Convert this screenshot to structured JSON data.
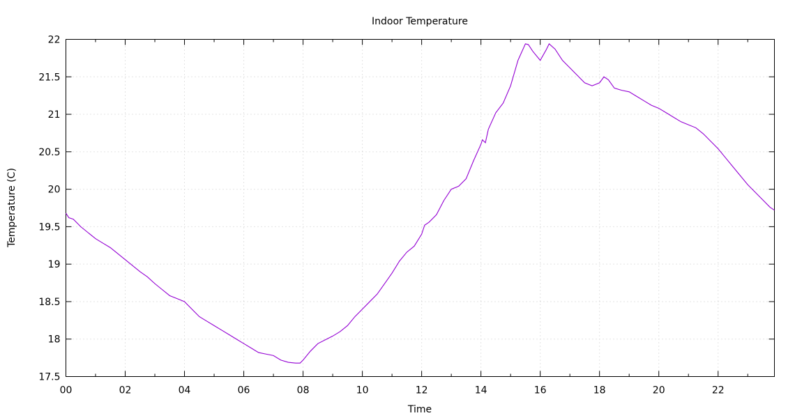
{
  "chart_data": {
    "type": "line",
    "title": "Indoor Temperature",
    "xlabel": "Time",
    "ylabel": "Temperature (C)",
    "xlim": [
      0,
      23.9
    ],
    "ylim": [
      17.5,
      22
    ],
    "grid": true,
    "color": "#9400d3",
    "x_ticks": [
      {
        "value": 0,
        "label": "00"
      },
      {
        "value": 2,
        "label": "02"
      },
      {
        "value": 4,
        "label": "04"
      },
      {
        "value": 6,
        "label": "06"
      },
      {
        "value": 8,
        "label": "08"
      },
      {
        "value": 10,
        "label": "10"
      },
      {
        "value": 12,
        "label": "12"
      },
      {
        "value": 14,
        "label": "14"
      },
      {
        "value": 16,
        "label": "16"
      },
      {
        "value": 18,
        "label": "18"
      },
      {
        "value": 20,
        "label": "20"
      },
      {
        "value": 22,
        "label": "22"
      }
    ],
    "x_minor_ticks": [
      1,
      3,
      5,
      7,
      9,
      11,
      13,
      15,
      17,
      19,
      21,
      23
    ],
    "y_ticks": [
      {
        "value": 17.5,
        "label": "17.5"
      },
      {
        "value": 18,
        "label": "18"
      },
      {
        "value": 18.5,
        "label": "18.5"
      },
      {
        "value": 19,
        "label": "19"
      },
      {
        "value": 19.5,
        "label": "19.5"
      },
      {
        "value": 20,
        "label": "20"
      },
      {
        "value": 20.5,
        "label": "20.5"
      },
      {
        "value": 21,
        "label": "21"
      },
      {
        "value": 21.5,
        "label": "21.5"
      },
      {
        "value": 22,
        "label": "22"
      }
    ],
    "series": [
      {
        "x": [
          0.0,
          0.1,
          0.25,
          0.5,
          0.75,
          1.0,
          1.25,
          1.5,
          1.75,
          2.0,
          2.25,
          2.5,
          2.75,
          3.0,
          3.25,
          3.5,
          3.75,
          4.0,
          4.25,
          4.5,
          4.75,
          5.0,
          5.25,
          5.5,
          5.75,
          6.0,
          6.25,
          6.5,
          6.75,
          7.0,
          7.25,
          7.5,
          7.75,
          7.9,
          8.0,
          8.25,
          8.5,
          8.75,
          9.0,
          9.25,
          9.5,
          9.75,
          10.0,
          10.25,
          10.5,
          10.75,
          11.0,
          11.25,
          11.5,
          11.75,
          12.0,
          12.1,
          12.25,
          12.5,
          12.75,
          13.0,
          13.25,
          13.5,
          13.75,
          14.0,
          14.05,
          14.15,
          14.25,
          14.5,
          14.75,
          15.0,
          15.25,
          15.5,
          15.6,
          15.75,
          16.0,
          16.2,
          16.3,
          16.5,
          16.75,
          17.0,
          17.25,
          17.5,
          17.75,
          18.0,
          18.15,
          18.3,
          18.5,
          18.75,
          19.0,
          19.25,
          19.5,
          19.75,
          20.0,
          20.25,
          20.5,
          20.75,
          21.0,
          21.25,
          21.5,
          21.75,
          22.0,
          22.25,
          22.5,
          22.75,
          23.0,
          23.25,
          23.5,
          23.75,
          23.9
        ],
        "y": [
          19.68,
          19.62,
          19.6,
          19.5,
          19.42,
          19.34,
          19.28,
          19.22,
          19.14,
          19.06,
          18.98,
          18.9,
          18.83,
          18.74,
          18.66,
          18.58,
          18.54,
          18.5,
          18.4,
          18.3,
          18.24,
          18.18,
          18.12,
          18.06,
          18.0,
          17.94,
          17.88,
          17.82,
          17.8,
          17.78,
          17.72,
          17.69,
          17.68,
          17.68,
          17.72,
          17.84,
          17.94,
          17.99,
          18.04,
          18.1,
          18.18,
          18.3,
          18.4,
          18.5,
          18.6,
          18.74,
          18.88,
          19.04,
          19.16,
          19.24,
          19.4,
          19.52,
          19.56,
          19.66,
          19.85,
          20.0,
          20.04,
          20.14,
          20.38,
          20.6,
          20.66,
          20.62,
          20.8,
          21.02,
          21.15,
          21.38,
          21.72,
          21.94,
          21.93,
          21.84,
          21.72,
          21.86,
          21.94,
          21.87,
          21.72,
          21.62,
          21.52,
          21.42,
          21.38,
          21.42,
          21.5,
          21.46,
          21.35,
          21.32,
          21.3,
          21.24,
          21.18,
          21.12,
          21.08,
          21.02,
          20.96,
          20.9,
          20.86,
          20.82,
          20.74,
          20.64,
          20.54,
          20.42,
          20.3,
          20.18,
          20.06,
          19.96,
          19.86,
          19.76,
          19.72
        ]
      }
    ]
  }
}
